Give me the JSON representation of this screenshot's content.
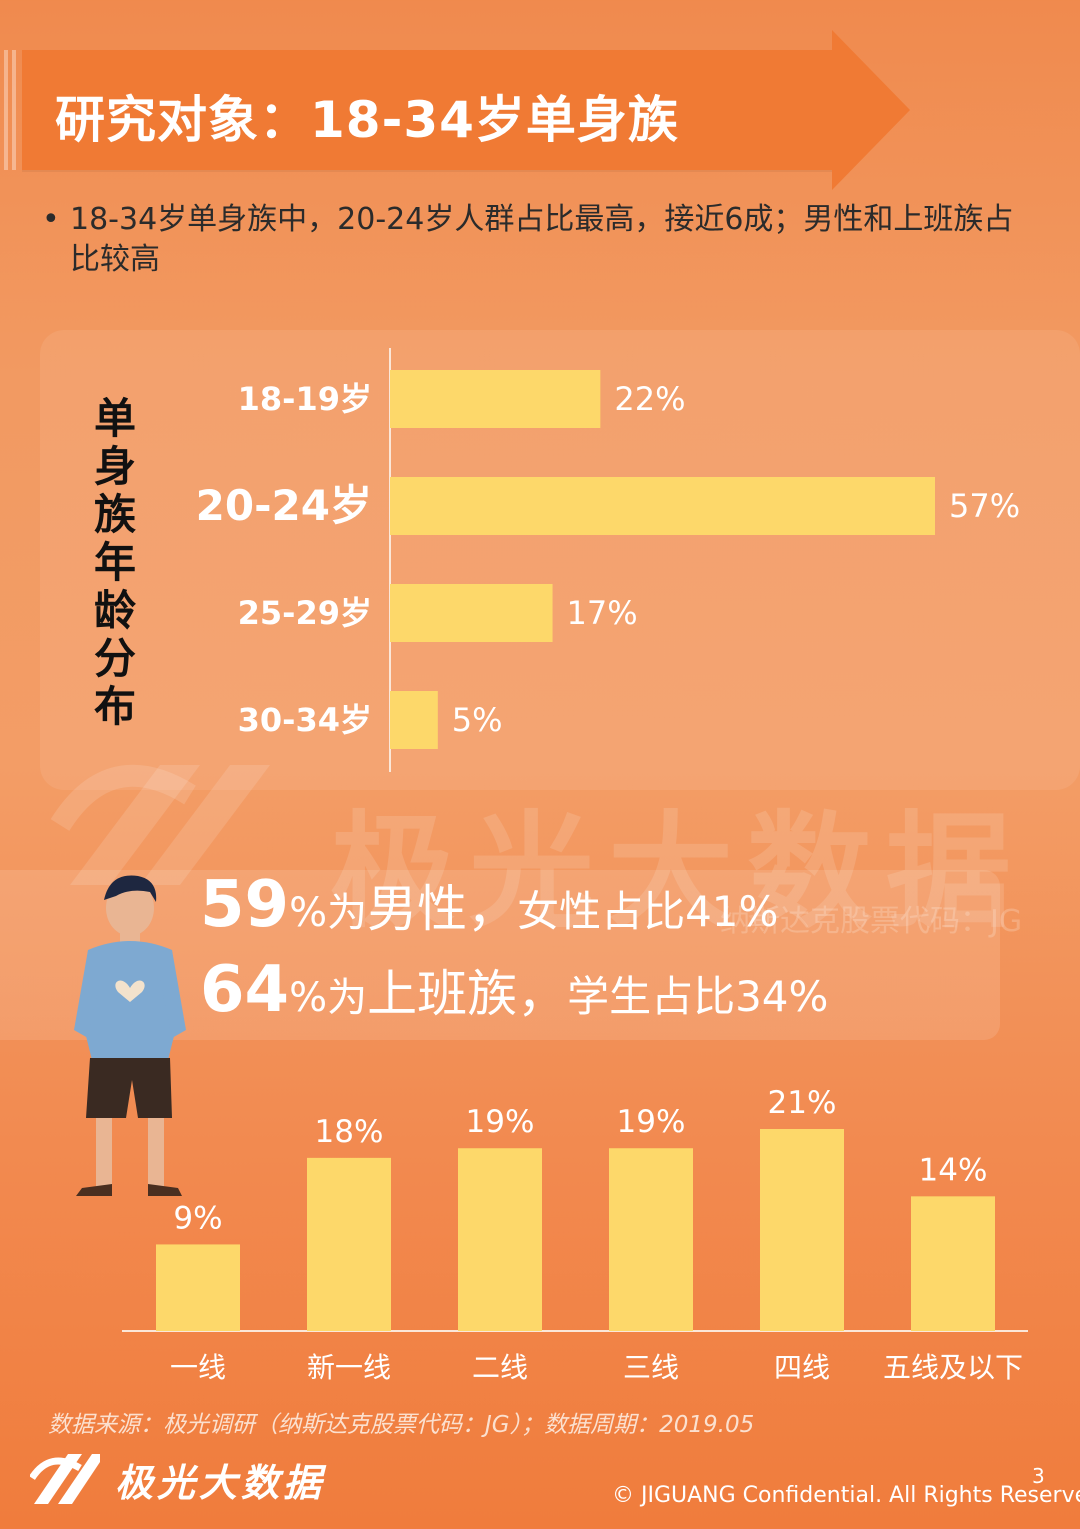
{
  "header": {
    "title": "研究对象：18-34岁单身族"
  },
  "bullet": {
    "dot": "•",
    "text": "18-34岁单身族中，20-24岁人群占比最高，接近6成；男性和上班族占比较高"
  },
  "age_chart_label": [
    "单",
    "身",
    "族",
    "年",
    "龄",
    "分",
    "布"
  ],
  "watermark": {
    "text": "极光大数据",
    "sub": "纳斯达克股票代码：JG"
  },
  "stats": {
    "line1": {
      "pct": "59",
      "unit": "%为",
      "label": "男性，",
      "rest": "女性占比41%"
    },
    "line2": {
      "pct": "64",
      "unit": "%为",
      "label": "上班族，",
      "rest": "学生占比34%"
    }
  },
  "chart_data": [
    {
      "type": "bar",
      "orientation": "horizontal",
      "categories": [
        "18-19岁",
        "20-24岁",
        "25-29岁",
        "30-34岁"
      ],
      "values": [
        22,
        57,
        17,
        5
      ],
      "value_labels": [
        "22%",
        "57%",
        "17%",
        "5%"
      ],
      "highlight_category": "20-24岁",
      "color": "#fdd86a",
      "xlim": [
        0,
        60
      ]
    },
    {
      "type": "bar",
      "orientation": "vertical",
      "categories": [
        "一线",
        "新一线",
        "二线",
        "三线",
        "四线",
        "五线及以下"
      ],
      "values": [
        9,
        18,
        19,
        19,
        21,
        14
      ],
      "value_labels": [
        "9%",
        "18%",
        "19%",
        "19%",
        "21%",
        "14%"
      ],
      "color": "#fdd86a",
      "ylim": [
        0,
        21
      ]
    }
  ],
  "footer": {
    "source": "数据来源：极光调研（纳斯达克股票代码：JG）；数据周期：2019.05",
    "brand": "极光大数据",
    "page": "3",
    "copyright": "© JIGUANG Confidential. All Rights Reserved."
  },
  "colors": {
    "accent": "#f07a34",
    "bar": "#fdd86a"
  }
}
